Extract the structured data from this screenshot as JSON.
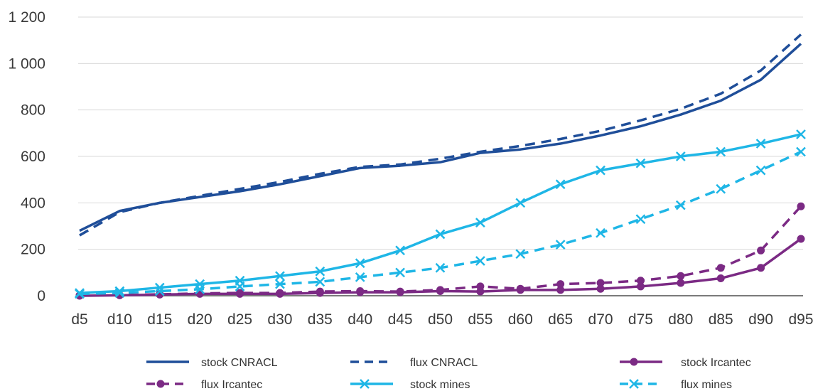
{
  "chart_data": {
    "type": "line",
    "title": "",
    "xlabel": "",
    "ylabel": "",
    "categories": [
      "d5",
      "d10",
      "d15",
      "d20",
      "d25",
      "d30",
      "d35",
      "d40",
      "d45",
      "d50",
      "d55",
      "d60",
      "d65",
      "d70",
      "d75",
      "d80",
      "d85",
      "d90",
      "d95"
    ],
    "ylim": [
      0,
      1200
    ],
    "yticks": [
      0,
      200,
      400,
      600,
      800,
      1000,
      1200
    ],
    "ytick_labels": [
      "0",
      "200",
      "400",
      "600",
      "800",
      "1 000",
      "1 200"
    ],
    "grid": "horizontal",
    "legend_position": "bottom",
    "series": [
      {
        "name": "stock CNRACL",
        "color": "#1f4e99",
        "dash": "solid",
        "marker": "none",
        "values": [
          280,
          365,
          400,
          425,
          450,
          480,
          515,
          550,
          560,
          575,
          615,
          630,
          655,
          690,
          730,
          780,
          840,
          930,
          1085
        ]
      },
      {
        "name": "flux CNRACL",
        "color": "#1f4e99",
        "dash": "dashed",
        "marker": "none",
        "values": [
          260,
          360,
          400,
          430,
          460,
          490,
          525,
          555,
          565,
          590,
          620,
          645,
          675,
          710,
          755,
          805,
          870,
          970,
          1125
        ]
      },
      {
        "name": "stock Ircantec",
        "color": "#7b2a84",
        "dash": "solid",
        "marker": "circle",
        "values": [
          0,
          2,
          5,
          8,
          8,
          8,
          12,
          15,
          15,
          20,
          18,
          25,
          25,
          30,
          40,
          55,
          75,
          120,
          245
        ]
      },
      {
        "name": "flux Ircantec",
        "color": "#7b2a84",
        "dash": "dashed",
        "marker": "circle",
        "values": [
          2,
          3,
          6,
          10,
          12,
          12,
          18,
          20,
          18,
          25,
          40,
          30,
          50,
          55,
          65,
          85,
          120,
          195,
          385
        ]
      },
      {
        "name": "stock mines",
        "color": "#1fb6e6",
        "dash": "solid",
        "marker": "x",
        "values": [
          12,
          20,
          35,
          50,
          65,
          85,
          105,
          140,
          195,
          265,
          315,
          400,
          480,
          540,
          570,
          600,
          620,
          655,
          695
        ]
      },
      {
        "name": "flux mines",
        "color": "#1fb6e6",
        "dash": "dashed",
        "marker": "x",
        "values": [
          8,
          12,
          20,
          28,
          40,
          50,
          60,
          80,
          100,
          120,
          150,
          180,
          220,
          270,
          330,
          390,
          460,
          540,
          620
        ]
      }
    ]
  }
}
